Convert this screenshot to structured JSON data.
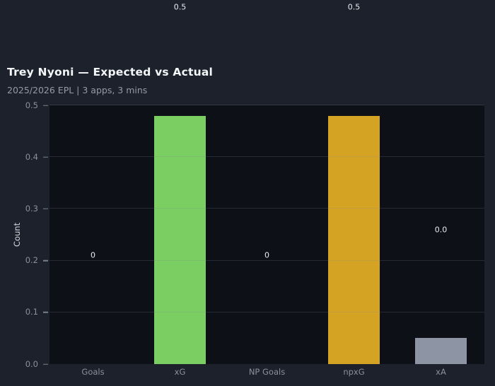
{
  "chart_data": {
    "type": "bar",
    "title": "Trey Nyoni — Expected vs Actual",
    "subtitle": "2025/2026 EPL | 3 apps, 3 mins",
    "categories": [
      "Goals",
      "xG",
      "NP Goals",
      "npxG",
      "xA"
    ],
    "values": [
      0,
      0.48,
      0,
      0.48,
      0.05
    ],
    "bar_labels": [
      "0",
      "0.5",
      "0",
      "0.5",
      "0.0"
    ],
    "bar_colors": [
      "#7bce61",
      "#7bce61",
      "#d5a323",
      "#d5a323",
      "#8d95a4"
    ],
    "bar_label_offset": 0.21,
    "xlabel": "",
    "ylabel": "Count",
    "ylim": [
      0,
      0.5
    ],
    "yticks": [
      0,
      0.1,
      0.2,
      0.3,
      0.4,
      0.5
    ],
    "grid": true,
    "legend": false,
    "colors": {
      "page_bg": "#1c212c",
      "plot_bg": "#0d1016",
      "grid": "#828a98",
      "tick_text": "#8a909c",
      "value_text": "#e9ebef",
      "title_text": "#f4f6f8",
      "subtitle_text": "#959ba6"
    }
  }
}
